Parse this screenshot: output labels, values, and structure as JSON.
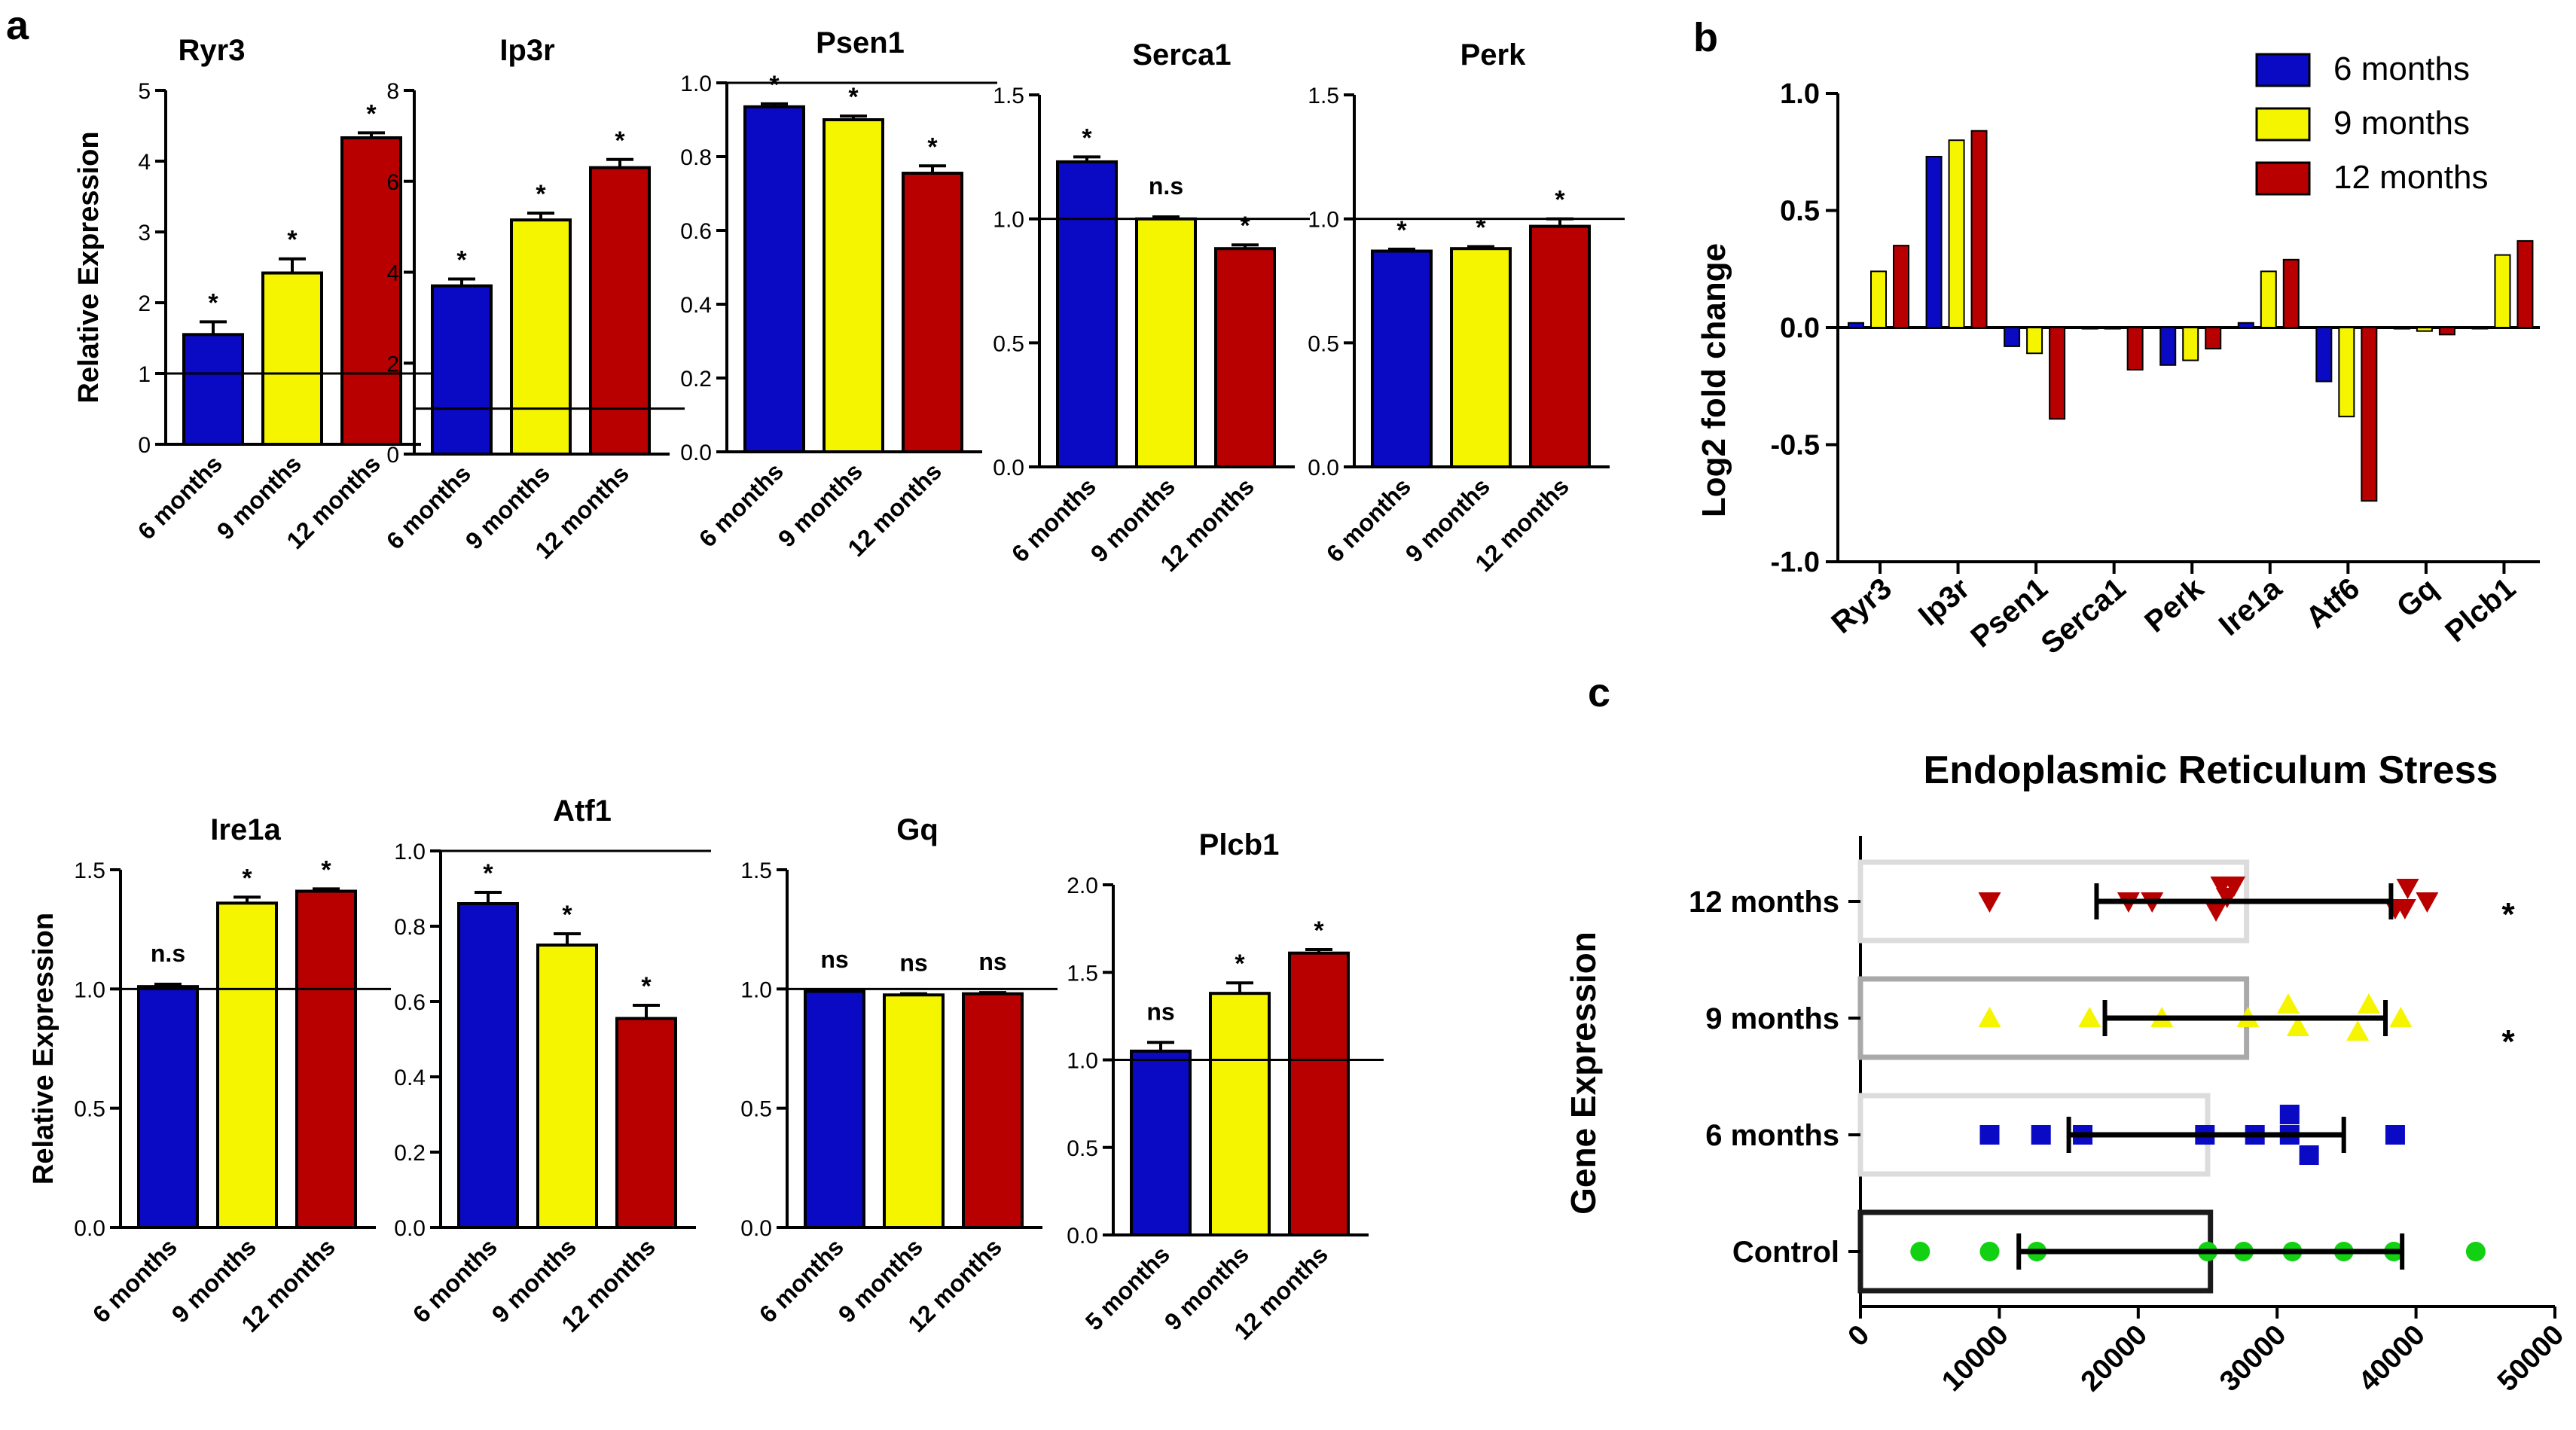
{
  "panel_labels": {
    "a": "a",
    "b": "b",
    "c": "c"
  },
  "colors": {
    "m6": "#0a0ac4",
    "m9": "#f5f500",
    "m12": "#b80000",
    "control": "#12d012",
    "grey_light": "#dcdcdc",
    "grey_mid": "#a9a9a9",
    "grey_dark": "#1a1a1a"
  },
  "chart_data": [
    {
      "id": "ryr3",
      "type": "bar",
      "title": "Ryr3",
      "ylabel": "Relative Expression",
      "ylim": [
        0,
        5
      ],
      "yticks": [
        "0",
        "1",
        "2",
        "3",
        "4",
        "5"
      ],
      "ref_line": 1,
      "categories": [
        "6 months",
        "9 months",
        "12 months"
      ],
      "values": [
        1.55,
        2.42,
        4.33
      ],
      "errors": [
        0.18,
        0.2,
        0.07
      ],
      "labels": [
        "*",
        "*",
        "*"
      ]
    },
    {
      "id": "ip3r",
      "type": "bar",
      "title": "Ip3r",
      "ylabel": "",
      "ylim": [
        0,
        8
      ],
      "yticks": [
        "0",
        "2",
        "4",
        "6",
        "8"
      ],
      "ref_line": 1,
      "categories": [
        "6 months",
        "9 months",
        "12 months"
      ],
      "values": [
        3.7,
        5.15,
        6.3
      ],
      "errors": [
        0.15,
        0.15,
        0.18
      ],
      "labels": [
        "*",
        "*",
        "*"
      ]
    },
    {
      "id": "psen1",
      "type": "bar",
      "title": "Psen1",
      "ylabel": "",
      "ylim": [
        0,
        1.0
      ],
      "yticks": [
        "0.0",
        "0.2",
        "0.4",
        "0.6",
        "0.8",
        "1.0"
      ],
      "ref_line": 1,
      "categories": [
        "6 months",
        "9 months",
        "12 months"
      ],
      "values": [
        0.935,
        0.9,
        0.755
      ],
      "errors": [
        0.008,
        0.01,
        0.02
      ],
      "labels": [
        "*",
        "*",
        "*"
      ]
    },
    {
      "id": "serca1",
      "type": "bar",
      "title": "Serca1",
      "ylabel": "",
      "ylim": [
        0,
        1.5
      ],
      "yticks": [
        "0.0",
        "0.5",
        "1.0",
        "1.5"
      ],
      "ref_line": 1,
      "categories": [
        "6 months",
        "9 months",
        "12 months"
      ],
      "values": [
        1.23,
        1.0,
        0.88
      ],
      "errors": [
        0.02,
        0.008,
        0.015
      ],
      "labels": [
        "*",
        "n.s",
        "*"
      ]
    },
    {
      "id": "perk",
      "type": "bar",
      "title": "Perk",
      "ylabel": "",
      "ylim": [
        0,
        1.5
      ],
      "yticks": [
        "0.0",
        "0.5",
        "1.0",
        "1.5"
      ],
      "ref_line": 1,
      "categories": [
        "6 months",
        "9 months",
        "12 months"
      ],
      "values": [
        0.87,
        0.88,
        0.97
      ],
      "errors": [
        0.008,
        0.008,
        0.03
      ],
      "labels": [
        "*",
        "*",
        "*"
      ]
    },
    {
      "id": "ire1a",
      "type": "bar",
      "title": "Ire1a",
      "ylabel": "Relative Expression",
      "ylim": [
        0,
        1.5
      ],
      "yticks": [
        "0.0",
        "0.5",
        "1.0",
        "1.5"
      ],
      "ref_line": 1,
      "categories": [
        "6 months",
        "9 months",
        "12 months"
      ],
      "values": [
        1.01,
        1.36,
        1.41
      ],
      "errors": [
        0.01,
        0.025,
        0.01
      ],
      "labels": [
        "n.s",
        "*",
        "*"
      ]
    },
    {
      "id": "atf1",
      "type": "bar",
      "title": "Atf1",
      "ylabel": "",
      "ylim": [
        0,
        1.0
      ],
      "yticks": [
        "0.0",
        "0.2",
        "0.4",
        "0.6",
        "0.8",
        "1.0"
      ],
      "ref_line": 1,
      "categories": [
        "6 months",
        "9 months",
        "12 months"
      ],
      "values": [
        0.86,
        0.75,
        0.555
      ],
      "errors": [
        0.03,
        0.03,
        0.035
      ],
      "labels": [
        "*",
        "*",
        "*"
      ]
    },
    {
      "id": "gq",
      "type": "bar",
      "title": "Gq",
      "ylabel": "",
      "ylim": [
        0,
        1.5
      ],
      "yticks": [
        "0.0",
        "0.5",
        "1.0",
        "1.5"
      ],
      "ref_line": 1,
      "categories": [
        "6 months",
        "9 months",
        "12 months"
      ],
      "values": [
        0.99,
        0.975,
        0.98
      ],
      "errors": [
        0.005,
        0.005,
        0.005
      ],
      "labels": [
        "ns",
        "ns",
        "ns"
      ]
    },
    {
      "id": "plcb1",
      "type": "bar",
      "title": "Plcb1",
      "ylabel": "",
      "ylim": [
        0,
        2.0
      ],
      "yticks": [
        "0.0",
        "0.5",
        "1.0",
        "1.5",
        "2.0"
      ],
      "ref_line": 1,
      "categories": [
        "5 months",
        "9 months",
        "12 months"
      ],
      "values": [
        1.05,
        1.38,
        1.61
      ],
      "errors": [
        0.05,
        0.06,
        0.02
      ],
      "labels": [
        "ns",
        "*",
        "*"
      ]
    },
    {
      "id": "log2fc",
      "type": "bar",
      "title": "",
      "ylabel": "Log2 fold change",
      "ylim": [
        -1.0,
        1.0
      ],
      "yticks": [
        "-1.0",
        "-0.5",
        "0.0",
        "0.5",
        "1.0"
      ],
      "categories": [
        "Ryr3",
        "Ip3r",
        "Psen1",
        "Serca1",
        "Perk",
        "Ire1a",
        "Atf6",
        "Gq",
        "Plcb1"
      ],
      "legend": {
        "position": "top-right",
        "entries": [
          "6 months",
          "9 months",
          "12 months"
        ]
      },
      "series": [
        {
          "name": "6 months",
          "values": [
            0.02,
            0.73,
            -0.08,
            -0.005,
            -0.16,
            0.02,
            -0.23,
            -0.005,
            0.0
          ]
        },
        {
          "name": "9 months",
          "values": [
            0.24,
            0.8,
            -0.11,
            -0.005,
            -0.14,
            0.24,
            -0.38,
            -0.015,
            0.31
          ]
        },
        {
          "name": "12 months",
          "values": [
            0.35,
            0.84,
            -0.39,
            -0.18,
            -0.09,
            0.29,
            -0.74,
            -0.03,
            0.37
          ]
        }
      ]
    },
    {
      "id": "er_stress",
      "type": "scatter",
      "title": "Endoplasmic Reticulum Stress",
      "ylabel": "Gene Expression",
      "xlim": [
        0,
        50000
      ],
      "xticks": [
        "0",
        "10000",
        "20000",
        "30000",
        "40000",
        "50000"
      ],
      "categories": [
        "12 months",
        "9 months",
        "6 months",
        "Control"
      ],
      "groups": [
        {
          "name": "12 months",
          "marker": "triangle-down",
          "mean": 27800,
          "sd_low": 17000,
          "sd_high": 38200,
          "points": [
            [
              9300,
              0
            ],
            [
              19300,
              0
            ],
            [
              21000,
              0
            ],
            [
              25600,
              0.2
            ],
            [
              26400,
              -0.1
            ],
            [
              26900,
              -0.35
            ],
            [
              26000,
              -0.35
            ],
            [
              38500,
              0.15
            ],
            [
              39400,
              -0.3
            ],
            [
              40800,
              0.0
            ],
            [
              39200,
              0.15
            ]
          ],
          "sig": "*"
        },
        {
          "name": "9 months",
          "marker": "triangle-up",
          "mean": 27800,
          "sd_low": 17600,
          "sd_high": 37800,
          "points": [
            [
              9300,
              0
            ],
            [
              16500,
              0
            ],
            [
              21700,
              0
            ],
            [
              27900,
              0
            ],
            [
              30800,
              -0.3
            ],
            [
              31500,
              0.2
            ],
            [
              35800,
              0.3
            ],
            [
              36600,
              -0.3
            ],
            [
              38900,
              0
            ]
          ],
          "sig": "*"
        },
        {
          "name": "6 months",
          "marker": "square",
          "mean": 25000,
          "sd_low": 15000,
          "sd_high": 34800,
          "points": [
            [
              9300,
              0
            ],
            [
              13000,
              0
            ],
            [
              16000,
              0
            ],
            [
              24800,
              0
            ],
            [
              28400,
              0
            ],
            [
              30900,
              0
            ],
            [
              30900,
              -0.45
            ],
            [
              32300,
              0.45
            ],
            [
              38500,
              0
            ]
          ],
          "sig": ""
        },
        {
          "name": "Control",
          "marker": "circle",
          "mean": 25200,
          "sd_low": 11400,
          "sd_high": 39000,
          "points": [
            [
              4300,
              0
            ],
            [
              9300,
              0
            ],
            [
              12700,
              0
            ],
            [
              25000,
              0
            ],
            [
              27600,
              0
            ],
            [
              31100,
              0
            ],
            [
              34800,
              0
            ],
            [
              38400,
              0
            ],
            [
              44300,
              0
            ]
          ],
          "sig": ""
        }
      ]
    }
  ]
}
